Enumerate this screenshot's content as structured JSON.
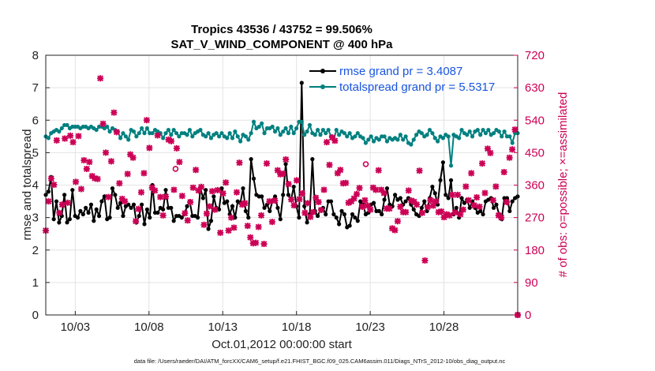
{
  "chart_data": {
    "type": "line",
    "title": "Tropics 43536 / 43752 = 99.506%",
    "subtitle": "SAT_V_WIND_COMPONENT @ 400 hPa",
    "xlabel": "Oct.01,2012 00:00:00 start",
    "ylabel": "rmse and totalspread",
    "y2label": "# of obs: o=possible; ×=assimilated",
    "xlim": [
      1,
      33
    ],
    "ylim": [
      0,
      8
    ],
    "y2lim": [
      0,
      720
    ],
    "x_ticks": [
      3,
      8,
      13,
      18,
      23,
      28
    ],
    "x_tick_labels": [
      "10/03",
      "10/08",
      "10/13",
      "10/18",
      "10/23",
      "10/28"
    ],
    "y_ticks": [
      0,
      1,
      2,
      3,
      4,
      5,
      6,
      7,
      8
    ],
    "y2_ticks": [
      0,
      90,
      180,
      270,
      360,
      450,
      540,
      630,
      720
    ],
    "legend_position": "top-right",
    "footnote": "data file: /Users/raeder/DAI/ATM_forcXX/CAM6_setup/f.e21.FHIST_BGC.f09_025.CAM6assim.011/Diags_NTrS_2012-10/obs_diag_output.nc",
    "series": [
      {
        "name": "rmse grand pr = 3.4087",
        "color": "#000000",
        "marker": "circle",
        "axis": "left",
        "values": [
          3.7,
          3.8,
          4.25,
          2.95,
          3.5,
          2.85,
          3.05,
          3.7,
          2.85,
          2.95,
          3.85,
          3.05,
          3.0,
          3.2,
          3.1,
          3.3,
          3.15,
          3.4,
          2.9,
          3.25,
          3.05,
          3.5,
          3.65,
          2.95,
          3.0,
          3.9,
          3.7,
          3.3,
          3.45,
          3.05,
          3.35,
          3.4,
          3.3,
          3.4,
          2.85,
          3.05,
          3.4,
          2.8,
          3.25,
          3.0,
          4.0,
          3.15,
          3.15,
          3.3,
          3.25,
          3.85,
          3.3,
          3.3,
          2.9,
          3.05,
          3.05,
          3.0,
          3.1,
          3.35,
          3.5,
          3.05,
          3.05,
          3.0,
          3.9,
          3.6,
          3.85,
          2.65,
          2.9,
          3.65,
          3.3,
          3.25,
          3.9,
          3.45,
          3.5,
          3.1,
          3.35,
          3.0,
          3.5,
          3.45,
          3.9,
          3.2,
          3.0,
          4.8,
          4.2,
          3.7,
          3.65,
          3.65,
          3.3,
          3.4,
          3.2,
          3.5,
          3.65,
          3.3,
          2.95,
          3.7,
          4.65,
          3.7,
          3.55,
          3.95,
          3.35,
          3.0,
          7.15,
          3.35,
          2.85,
          3.1,
          4.8,
          3.2,
          3.05,
          3.25,
          3.3,
          3.1,
          3.5,
          3.5,
          3.1,
          3.0,
          2.8,
          3.2,
          3.1,
          2.7,
          2.75,
          3.1,
          3.0,
          2.9,
          3.5,
          3.4,
          3.1,
          3.15,
          3.4,
          3.45,
          3.2,
          3.2,
          3.1,
          3.55,
          3.9,
          3.4,
          3.35,
          3.7,
          3.55,
          3.6,
          3.4,
          3.5,
          3.6,
          3.4,
          3.25,
          3.1,
          3.05,
          3.3,
          3.5,
          3.2,
          3.6,
          3.95,
          3.75,
          3.4,
          4.15,
          4.7,
          3.7,
          3.6,
          4.15,
          3.1,
          3.3,
          3.0,
          3.6,
          3.45,
          3.55,
          3.3,
          3.5,
          3.3,
          3.15,
          3.2,
          3.1,
          3.5,
          3.55,
          3.6,
          3.3,
          3.4,
          3.1,
          2.95,
          3.6,
          3.6,
          3.2,
          3.5,
          3.6,
          3.65
        ]
      },
      {
        "name": "totalspread grand pr = 5.5317",
        "color": "#008080",
        "marker": "circle",
        "axis": "left",
        "values": [
          5.5,
          5.45,
          5.6,
          5.65,
          5.7,
          5.65,
          5.75,
          5.85,
          5.85,
          5.75,
          5.8,
          5.8,
          5.8,
          5.75,
          5.8,
          5.8,
          5.75,
          5.8,
          5.75,
          5.7,
          5.8,
          5.8,
          5.75,
          5.8,
          5.65,
          5.75,
          5.7,
          5.65,
          5.45,
          5.6,
          5.5,
          5.4,
          5.7,
          5.65,
          5.5,
          5.6,
          5.75,
          5.6,
          5.75,
          5.6,
          5.6,
          5.7,
          5.65,
          5.6,
          5.45,
          5.6,
          5.7,
          5.55,
          5.7,
          5.6,
          5.5,
          5.6,
          5.6,
          5.55,
          5.7,
          5.5,
          5.6,
          5.65,
          5.7,
          5.55,
          5.5,
          5.6,
          5.45,
          5.55,
          5.6,
          5.5,
          5.6,
          5.5,
          5.45,
          5.6,
          5.45,
          5.65,
          5.5,
          5.35,
          5.55,
          5.5,
          5.4,
          5.6,
          5.95,
          5.75,
          5.8,
          5.9,
          5.6,
          5.75,
          5.75,
          5.8,
          5.65,
          5.75,
          5.55,
          5.65,
          5.75,
          5.6,
          5.8,
          5.6,
          5.75,
          5.95,
          5.95,
          5.55,
          5.65,
          5.85,
          5.6,
          5.55,
          5.7,
          5.55,
          5.7,
          5.6,
          5.7,
          5.5,
          5.4,
          5.7,
          5.55,
          5.65,
          5.6,
          5.5,
          5.6,
          5.45,
          5.5,
          5.6,
          5.5,
          5.45,
          5.3,
          5.4,
          5.5,
          5.35,
          5.45,
          5.4,
          5.5,
          5.5,
          5.35,
          5.45,
          5.4,
          5.45,
          5.4,
          5.55,
          5.4,
          5.5,
          5.3,
          5.25,
          5.4,
          5.55,
          5.65,
          5.6,
          5.5,
          5.55,
          5.7,
          5.6,
          5.45,
          5.35,
          5.5,
          5.45,
          5.55,
          5.5,
          4.6,
          5.55,
          5.5,
          5.45,
          5.7,
          5.6,
          5.55,
          5.65,
          5.5,
          5.65,
          5.7,
          5.55,
          5.7,
          5.6,
          5.7,
          5.55,
          5.6,
          5.7,
          5.65,
          5.5,
          5.65,
          5.5,
          5.5,
          5.3,
          5.6,
          5.6
        ]
      },
      {
        "name": "obs assimilated",
        "color": "#cc0055",
        "marker": "x",
        "axis": "right",
        "values": [
          234,
          315,
          378,
          361,
          484,
          283,
          306,
          489,
          311,
          497,
          479,
          369,
          496,
          349,
          429,
          405,
          424,
          385,
          379,
          377,
          656,
          530,
          450,
          327,
          426,
          561,
          507,
          365,
          322,
          315,
          391,
          445,
          436,
          260,
          294,
          340,
          393,
          540,
          463,
          353,
          345,
          498,
          327,
          276,
          328,
          486,
          482,
          347,
          462,
          424,
          330,
          282,
          262,
          313,
          353,
          402,
          345,
          355,
          250,
          281,
          301,
          343,
          292,
          346,
          228,
          337,
          367,
          234,
          270,
          242,
          340,
          422,
          306,
          310,
          247,
          215,
          199,
          200,
          244,
          276,
          197,
          420,
          315,
          258,
          317,
          401,
          390,
          392,
          431,
          363,
          320,
          304,
          373,
          321,
          337,
          283,
          310,
          272,
          285,
          325,
          313,
          291,
          347,
          479,
          416,
          492,
          483,
          393,
          402,
          365,
          366,
          311,
          315,
          323,
          335,
          352,
          300,
          318,
          303,
          292,
          353,
          347,
          401,
          347,
          338,
          295,
          295,
          240,
          235,
          260,
          300,
          285,
          285,
          345,
          317,
          314,
          306,
          400,
          283,
          151,
          299,
          318,
          303,
          315,
          285,
          287,
          271,
          279,
          276,
          333,
          284,
          333,
          279,
          292,
          356,
          318,
          393,
          304,
          326,
          300,
          420,
          338,
          461,
          449,
          318,
          356,
          276,
          270,
          396,
          313,
          436,
          459,
          514,
          0
        ]
      },
      {
        "name": "obs possible",
        "color": "#cc0055",
        "marker": "o",
        "axis": "right",
        "values": [
          {
            "x": 9.8,
            "y": 405
          },
          {
            "x": 22.7,
            "y": 418
          },
          {
            "x": 33.0,
            "y": 0
          }
        ]
      }
    ]
  }
}
